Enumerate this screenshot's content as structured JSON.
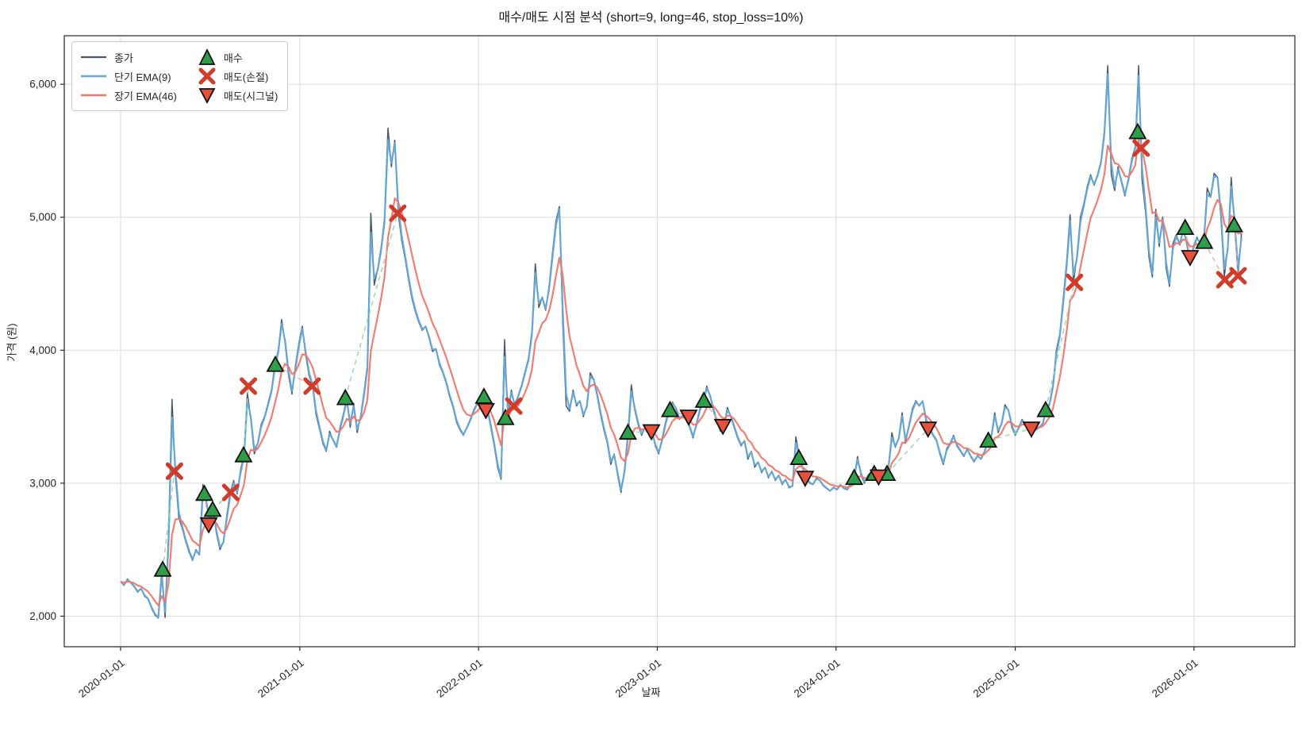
{
  "title": "매수/매도 시점 분석 (short=9, long=46, stop_loss=10%)",
  "chart_data": {
    "type": "line",
    "title": "매수/매도 시점 분석 (short=9, long=46, stop_loss=10%)",
    "xlabel": "날짜",
    "ylabel": "가격 (원)",
    "xlim": [
      "2019-09-08",
      "2026-07-26"
    ],
    "ylim": [
      1770,
      6365
    ],
    "grid": true,
    "legend_position": "upper left",
    "yticks": [
      2000,
      3000,
      4000,
      5000,
      6000
    ],
    "ytick_labels": [
      "2,000",
      "3,000",
      "4,000",
      "5,000",
      "6,000"
    ],
    "xticks": [
      "2020-01-01",
      "2021-01-01",
      "2022-01-01",
      "2023-01-01",
      "2024-01-01",
      "2025-01-01",
      "2026-01-01"
    ],
    "strategy": {
      "short": 9,
      "long": 46,
      "stop_loss_pct": 10
    },
    "series": [
      {
        "name": "종가",
        "role": "close",
        "color": "#47596b",
        "width": 1.5
      },
      {
        "name": "단기 EMA(9)",
        "role": "ema_short",
        "span_days": 9,
        "color": "#64a8d8",
        "width": 2.2
      },
      {
        "name": "장기 EMA(46)",
        "role": "ema_long",
        "span_days": 46,
        "color": "#f0776b",
        "width": 2.2
      }
    ],
    "close_weekly": {
      "start": "2020-01-01",
      "step_days": 7,
      "values": [
        2260,
        2230,
        2280,
        2250,
        2220,
        2180,
        2210,
        2150,
        2130,
        2060,
        2010,
        1985,
        2350,
        1990,
        2630,
        3630,
        3050,
        2740,
        2660,
        2560,
        2480,
        2420,
        2500,
        2460,
        2990,
        2860,
        2690,
        2800,
        2620,
        2500,
        2560,
        2760,
        2930,
        3020,
        2920,
        3100,
        3210,
        3680,
        3480,
        3220,
        3300,
        3440,
        3500,
        3600,
        3700,
        3885,
        4000,
        4230,
        4050,
        3810,
        3670,
        3880,
        4050,
        4180,
        3960,
        3810,
        3730,
        3520,
        3410,
        3300,
        3240,
        3390,
        3320,
        3270,
        3420,
        3520,
        3640,
        3420,
        3600,
        3380,
        3500,
        3680,
        3880,
        5030,
        4490,
        4610,
        4770,
        4990,
        5670,
        5380,
        5580,
        5030,
        4830,
        4690,
        4530,
        4390,
        4290,
        4210,
        4150,
        4180,
        4090,
        3990,
        4010,
        3890,
        3830,
        3750,
        3650,
        3570,
        3460,
        3400,
        3360,
        3420,
        3480,
        3550,
        3600,
        3640,
        3650,
        3550,
        3420,
        3280,
        3120,
        3030,
        4080,
        3490,
        3700,
        3580,
        3660,
        3740,
        3840,
        3940,
        4140,
        4650,
        4320,
        4400,
        4300,
        4480,
        4730,
        4970,
        5080,
        4200,
        3580,
        3540,
        3700,
        3580,
        3620,
        3500,
        3580,
        3830,
        3780,
        3660,
        3520,
        3400,
        3300,
        3140,
        3220,
        3060,
        2930,
        3100,
        3380,
        3740,
        3550,
        3440,
        3360,
        3420,
        3380,
        3390,
        3280,
        3220,
        3340,
        3460,
        3550,
        3610,
        3560,
        3480,
        3510,
        3500,
        3420,
        3340,
        3450,
        3560,
        3620,
        3730,
        3650,
        3540,
        3460,
        3390,
        3430,
        3570,
        3500,
        3420,
        3340,
        3280,
        3320,
        3180,
        3240,
        3120,
        3160,
        3080,
        3120,
        3040,
        3090,
        3020,
        3060,
        2990,
        3030,
        2965,
        2980,
        3350,
        3190,
        3100,
        3040,
        3000,
        2990,
        3040,
        3020,
        2980,
        2960,
        2940,
        2970,
        2950,
        2990,
        2960,
        2950,
        3000,
        3040,
        3200,
        3060,
        3000,
        3060,
        3080,
        3070,
        3050,
        3020,
        3070,
        3120,
        3380,
        3270,
        3340,
        3530,
        3300,
        3440,
        3560,
        3620,
        3580,
        3620,
        3460,
        3410,
        3360,
        3320,
        3220,
        3140,
        3260,
        3300,
        3360,
        3280,
        3240,
        3200,
        3260,
        3200,
        3160,
        3210,
        3180,
        3240,
        3320,
        3350,
        3530,
        3380,
        3450,
        3590,
        3550,
        3420,
        3360,
        3420,
        3480,
        3440,
        3410,
        3410,
        3400,
        3420,
        3450,
        3550,
        3600,
        3740,
        4000,
        4120,
        4390,
        4670,
        5020,
        4510,
        4710,
        5000,
        5100,
        5230,
        5320,
        5240,
        5320,
        5420,
        5650,
        6140,
        5320,
        5200,
        5380,
        5260,
        5160,
        5290,
        5440,
        5530,
        6140,
        5280,
        5040,
        4700,
        4550,
        5060,
        4780,
        5000,
        4620,
        4480,
        4800,
        4870,
        4790,
        4920,
        4800,
        4660,
        4780,
        4850,
        4800,
        4815,
        5220,
        5150,
        5330,
        5300,
        5000,
        4550,
        4780,
        5300,
        4940,
        4560,
        4880
      ]
    },
    "markers": {
      "buy": {
        "label": "매수",
        "color": "#2f9e48",
        "points": [
          [
            "2020-03-27",
            2350
          ],
          [
            "2020-06-20",
            2920
          ],
          [
            "2020-07-07",
            2800
          ],
          [
            "2020-09-08",
            3210
          ],
          [
            "2020-11-12",
            3890
          ],
          [
            "2021-04-04",
            3640
          ],
          [
            "2022-01-12",
            3650
          ],
          [
            "2022-02-25",
            3490
          ],
          [
            "2022-11-02",
            3380
          ],
          [
            "2023-01-27",
            3550
          ],
          [
            "2023-04-06",
            3620
          ],
          [
            "2023-10-17",
            3190
          ],
          [
            "2024-02-07",
            3040
          ],
          [
            "2024-03-19",
            3070
          ],
          [
            "2024-04-14",
            3070
          ],
          [
            "2024-11-07",
            3320
          ],
          [
            "2025-03-04",
            3550
          ],
          [
            "2025-09-08",
            5640
          ],
          [
            "2025-12-14",
            4920
          ],
          [
            "2026-01-22",
            4815
          ],
          [
            "2026-03-24",
            4940
          ]
        ]
      },
      "sell_stop": {
        "label": "매도(손절)",
        "color": "#d13b2a",
        "points": [
          [
            "2020-04-20",
            3090
          ],
          [
            "2020-08-13",
            2930
          ],
          [
            "2020-09-18",
            3730
          ],
          [
            "2021-01-26",
            3730
          ],
          [
            "2021-07-20",
            5030
          ],
          [
            "2022-03-14",
            3580
          ],
          [
            "2025-05-02",
            4510
          ],
          [
            "2025-09-15",
            5520
          ],
          [
            "2026-03-05",
            4530
          ],
          [
            "2026-04-01",
            4560
          ]
        ]
      },
      "sell_signal": {
        "label": "매도(시그널)",
        "color": "#e8503c",
        "points": [
          [
            "2020-06-29",
            2690
          ],
          [
            "2022-01-16",
            3550
          ],
          [
            "2022-12-20",
            3390
          ],
          [
            "2023-03-06",
            3500
          ],
          [
            "2023-05-15",
            3430
          ],
          [
            "2023-10-30",
            3040
          ],
          [
            "2024-03-28",
            3050
          ],
          [
            "2024-07-07",
            3410
          ],
          [
            "2025-02-03",
            3410
          ],
          [
            "2025-12-24",
            4700
          ]
        ]
      }
    },
    "connector_colors": {
      "win": "#8fd6a4",
      "loss": "#f4a79d"
    },
    "grid_color": "#dcdcdc",
    "spine_color": "#262626"
  }
}
